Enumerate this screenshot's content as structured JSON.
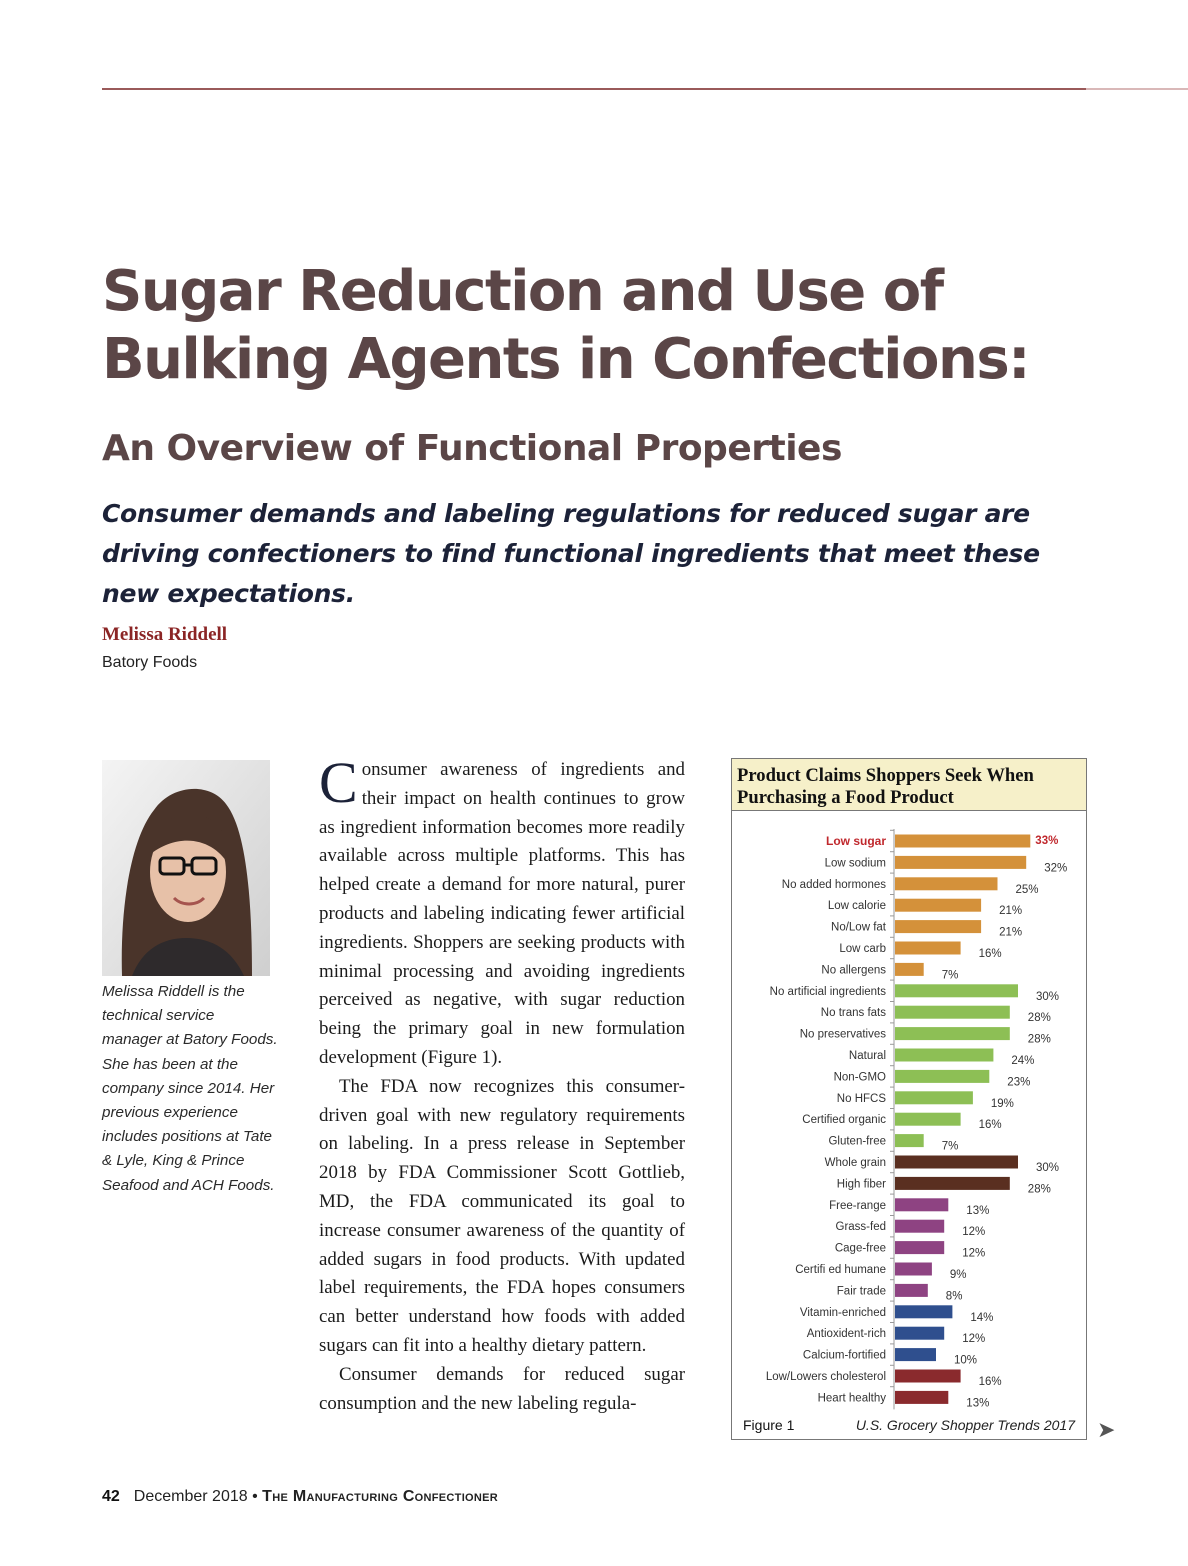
{
  "title": "Sugar Reduction and Use of Bulking Agents in Confections:",
  "subtitle": "An Overview of Functional Properties",
  "deck": "Consumer demands and labeling regulations for reduced sugar are driving confectioners to find functional ingredients that meet these new expectations.",
  "author": {
    "name": "Melissa Riddell",
    "affiliation": "Batory Foods"
  },
  "photo_caption": "Melissa Riddell is the technical service manager at Batory Foods. She has been at the company since 2014. Her previous experience includes positions at Tate & Lyle, King & Prince Seafood and ACH Foods.",
  "body": {
    "drop_cap": "C",
    "p1_rest": "onsumer awareness of ingredients and their impact on health continues to grow as ingredient information becomes more readily available across multiple platforms. This has helped create a demand for more natural, purer products and labeling indicating fewer artificial ingredients. Shoppers are seeking products with minimal processing and avoiding ingredients perceived as negative, with sugar reduction being the primary goal in new formulation development (Figure 1).",
    "p2": "The FDA now recognizes this consumer-driven goal with new regulatory requirements on labeling. In a press release in September 2018 by FDA Commissioner Scott Gottlieb, MD, the FDA communicated its goal to increase consumer awareness of the quantity of added sugars in food products. With updated label requirements, the FDA hopes consumers can better understand how foods with added sugars can fit into a healthy dietary pattern.",
    "p3": "Consumer demands for reduced sugar consumption and the new labeling regula-"
  },
  "figure": {
    "header": "Product Claims Shoppers Seek When Purchasing a Food Product",
    "label": "Figure 1",
    "source": "U.S. Grocery Shopper Trends 2017",
    "continue_arrow": "➤"
  },
  "colors": {
    "title": "#5b4647",
    "deck": "#1c2238",
    "author": "#8b2525",
    "highlight_label": "#c0282d",
    "orange": "#d4913a",
    "green": "#8dbf55",
    "brown": "#5a2f20",
    "purple": "#8e4382",
    "blue": "#2f4f8e",
    "red": "#8a2a2d"
  },
  "chart_data": {
    "type": "bar",
    "orientation": "horizontal",
    "title": "Product Claims Shoppers Seek When Purchasing a Food Product",
    "value_suffix": "%",
    "xlim": [
      0,
      35
    ],
    "categories": [
      "Low sugar",
      "Low sodium",
      "No added hormones",
      "Low calorie",
      "No/Low fat",
      "Low carb",
      "No allergens",
      "No artificial ingredients",
      "No trans fats",
      "No preservatives",
      "Natural",
      "Non-GMO",
      "No HFCS",
      "Certified organic",
      "Gluten-free",
      "Whole grain",
      "High fiber",
      "Free-range",
      "Grass-fed",
      "Cage-free",
      "Certifi  ed humane",
      "Fair trade",
      "Vitamin-enriched",
      "Antioxident-rich",
      "Calcium-fortified",
      "Low/Lowers cholesterol",
      "Heart healthy"
    ],
    "values": [
      33,
      32,
      25,
      21,
      21,
      16,
      7,
      30,
      28,
      28,
      24,
      23,
      19,
      16,
      7,
      30,
      28,
      13,
      12,
      12,
      9,
      8,
      14,
      12,
      10,
      16,
      13
    ],
    "groups": [
      "orange",
      "orange",
      "orange",
      "orange",
      "orange",
      "orange",
      "orange",
      "green",
      "green",
      "green",
      "green",
      "green",
      "green",
      "green",
      "green",
      "brown",
      "brown",
      "purple",
      "purple",
      "purple",
      "purple",
      "purple",
      "blue",
      "blue",
      "blue",
      "red",
      "red"
    ],
    "highlight": [
      "Low sugar"
    ]
  },
  "footer": {
    "page_number": "42",
    "issue": "December 2018",
    "separator": "•",
    "magazine": "The Manufacturing Confectioner"
  }
}
